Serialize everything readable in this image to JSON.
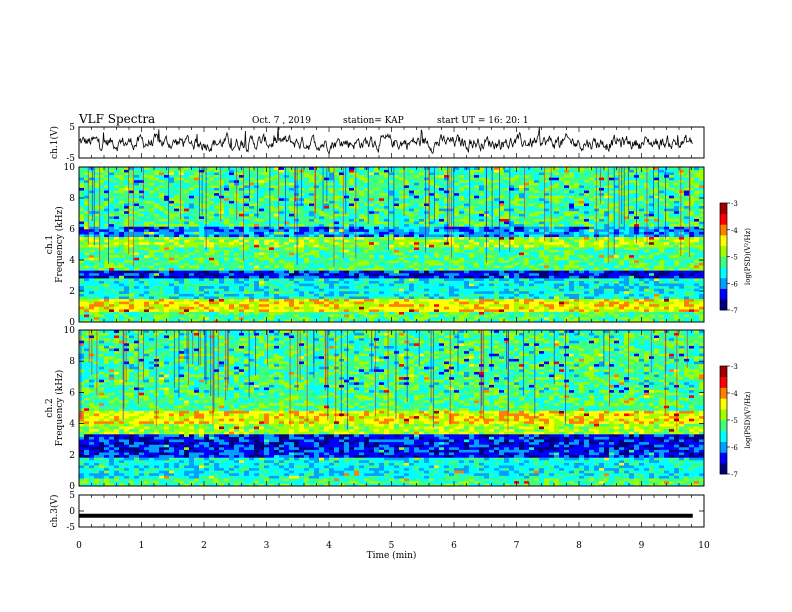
{
  "header": {
    "title": "VLF Spectra",
    "date": "Oct. 7 , 2019",
    "station": "station= KAP",
    "start": "start  UT =   16: 20: 1"
  },
  "colors": {
    "jet": [
      "#00007f",
      "#0000ff",
      "#00a0ff",
      "#00ffff",
      "#40ff80",
      "#a0ff00",
      "#ffff00",
      "#ff8000",
      "#ff0000",
      "#a00000"
    ]
  },
  "chart_data": [
    {
      "id": "ch1_waveform",
      "type": "line",
      "ylabel": "ch.1(V)",
      "ylim": [
        -5,
        5
      ],
      "yticks": [
        "5",
        "-5"
      ],
      "xlim": [
        0,
        10
      ],
      "x_range": [
        0,
        9.82
      ],
      "y_approx_range": [
        -3.5,
        5
      ],
      "y_mean_approx": 0
    },
    {
      "id": "ch1_spectrogram",
      "type": "heatmap",
      "ylabel_line1": "ch.1",
      "ylabel_line2": "Frequency  (kHz)",
      "ylim": [
        0,
        10
      ],
      "yticks": [
        "0",
        "2",
        "4",
        "6",
        "8",
        "10"
      ],
      "xlim": [
        0,
        10
      ],
      "colorbar": {
        "label": "log(PSD)(V²/Hz)",
        "range": [
          -7,
          -3
        ],
        "ticks": [
          "-3",
          "-4",
          "-5",
          "-6",
          "-7"
        ]
      },
      "bands_khz": [
        {
          "from": 0.0,
          "to": 0.6,
          "level": 4
        },
        {
          "from": 0.6,
          "to": 1.5,
          "level": 6
        },
        {
          "from": 1.5,
          "to": 2.8,
          "level": 3
        },
        {
          "from": 2.8,
          "to": 3.4,
          "level": 1
        },
        {
          "from": 3.4,
          "to": 4.8,
          "level": 4
        },
        {
          "from": 4.8,
          "to": 5.5,
          "level": 5
        },
        {
          "from": 5.5,
          "to": 6.2,
          "level": 2
        },
        {
          "from": 6.2,
          "to": 8.0,
          "level": 4
        },
        {
          "from": 8.0,
          "to": 10.0,
          "level": 4
        }
      ]
    },
    {
      "id": "ch2_spectrogram",
      "type": "heatmap",
      "ylabel_line1": "ch.2",
      "ylabel_line2": "Frequency  (kHz)",
      "ylim": [
        0,
        10
      ],
      "yticks": [
        "0",
        "2",
        "4",
        "6",
        "8",
        "10"
      ],
      "xlim": [
        0,
        10
      ],
      "colorbar": {
        "label": "log(PSD)(V²/Hz)",
        "range": [
          -7,
          -3
        ],
        "ticks": [
          "-3",
          "-4",
          "-5",
          "-6",
          "-7"
        ]
      },
      "bands_khz": [
        {
          "from": 0.0,
          "to": 0.5,
          "level": 4
        },
        {
          "from": 0.5,
          "to": 1.8,
          "level": 3
        },
        {
          "from": 1.8,
          "to": 3.4,
          "level": 1
        },
        {
          "from": 3.4,
          "to": 4.0,
          "level": 5
        },
        {
          "from": 4.0,
          "to": 4.8,
          "level": 6
        },
        {
          "from": 4.8,
          "to": 6.5,
          "level": 4
        },
        {
          "from": 6.5,
          "to": 10.0,
          "level": 4
        }
      ]
    },
    {
      "id": "ch3_waveform",
      "type": "line",
      "ylabel": "ch.3(V)",
      "ylim": [
        -5,
        5
      ],
      "yticks": [
        "5",
        "0",
        "-5"
      ],
      "xlim": [
        0,
        10
      ],
      "x_range": [
        0,
        9.82
      ],
      "constant_value": -1.5
    }
  ],
  "xaxis": {
    "label": "Time  (min)",
    "ticks": [
      "0",
      "1",
      "2",
      "3",
      "4",
      "5",
      "6",
      "7",
      "8",
      "9",
      "10"
    ]
  }
}
